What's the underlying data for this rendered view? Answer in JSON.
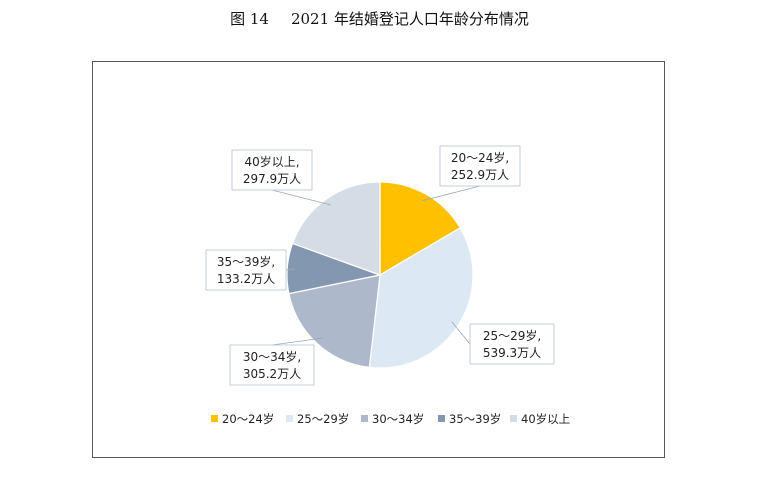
{
  "figure": {
    "number": "图 14",
    "title": "2021 年结婚登记人口年龄分布情况"
  },
  "chart_data": {
    "type": "pie",
    "unit": "万人",
    "slices": [
      {
        "label": "20～24岁",
        "value": 252.9,
        "value_text": "252.9万人",
        "color": "#FFC000"
      },
      {
        "label": "25～29岁",
        "value": 539.3,
        "value_text": "539.3万人",
        "color": "#DDE8F5"
      },
      {
        "label": "30～34岁",
        "value": 305.2,
        "value_text": "305.2万人",
        "color": "#ADB9CA"
      },
      {
        "label": "35～39岁",
        "value": 133.2,
        "value_text": "133.2万人",
        "color": "#8497B0"
      },
      {
        "label": "40岁以上",
        "value": 297.9,
        "value_text": "297.9万人",
        "color": "#D6DCE5"
      }
    ],
    "legend": [
      "20～24岁",
      "25～29岁",
      "30～34岁",
      "35～39岁",
      "40岁以上"
    ],
    "legend_placement": "bottom",
    "start_angle_deg": 0,
    "direction": "clockwise"
  }
}
